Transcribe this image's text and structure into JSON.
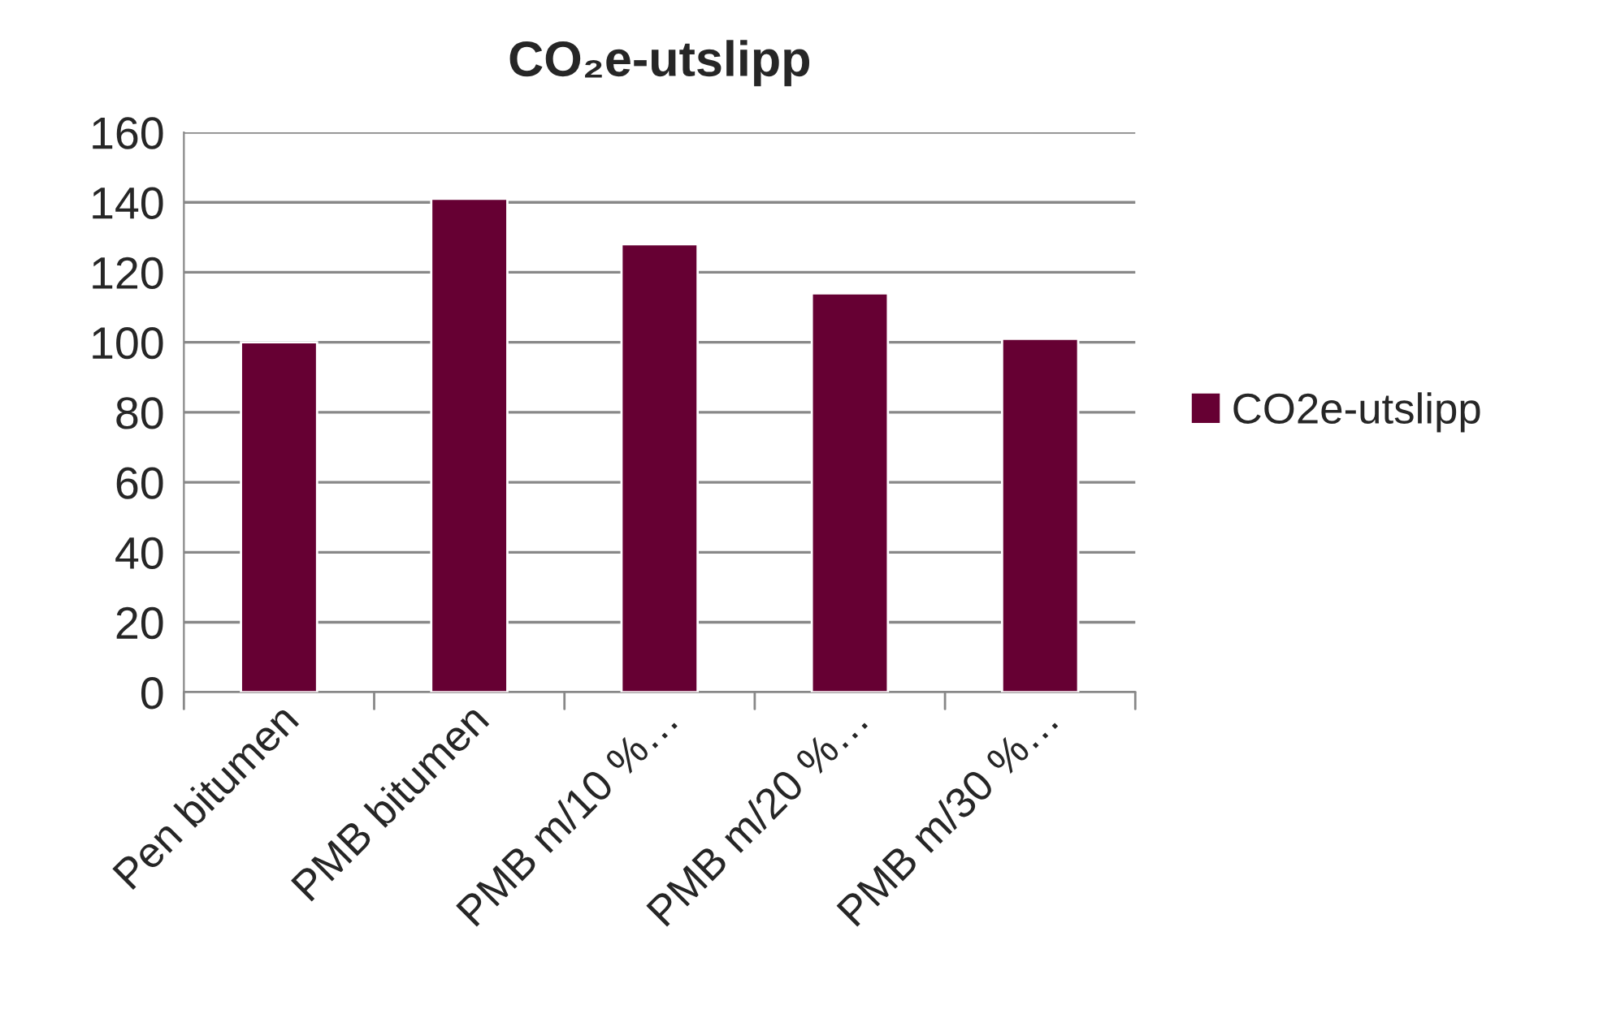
{
  "chart_data": {
    "type": "bar",
    "title": "CO₂e-utslipp",
    "categories": [
      "Pen bitumen",
      "PMB bitumen",
      "PMB m/10 %…",
      "PMB m/20 %…",
      "PMB m/30 %…"
    ],
    "series": [
      {
        "name": "CO2e-utslipp",
        "color": "#660033",
        "values": [
          100,
          141,
          128,
          114,
          101
        ]
      }
    ],
    "ylim": [
      0,
      160
    ],
    "yticks": [
      0,
      20,
      40,
      60,
      80,
      100,
      120,
      140,
      160
    ],
    "grid": "y",
    "legend": "right"
  }
}
